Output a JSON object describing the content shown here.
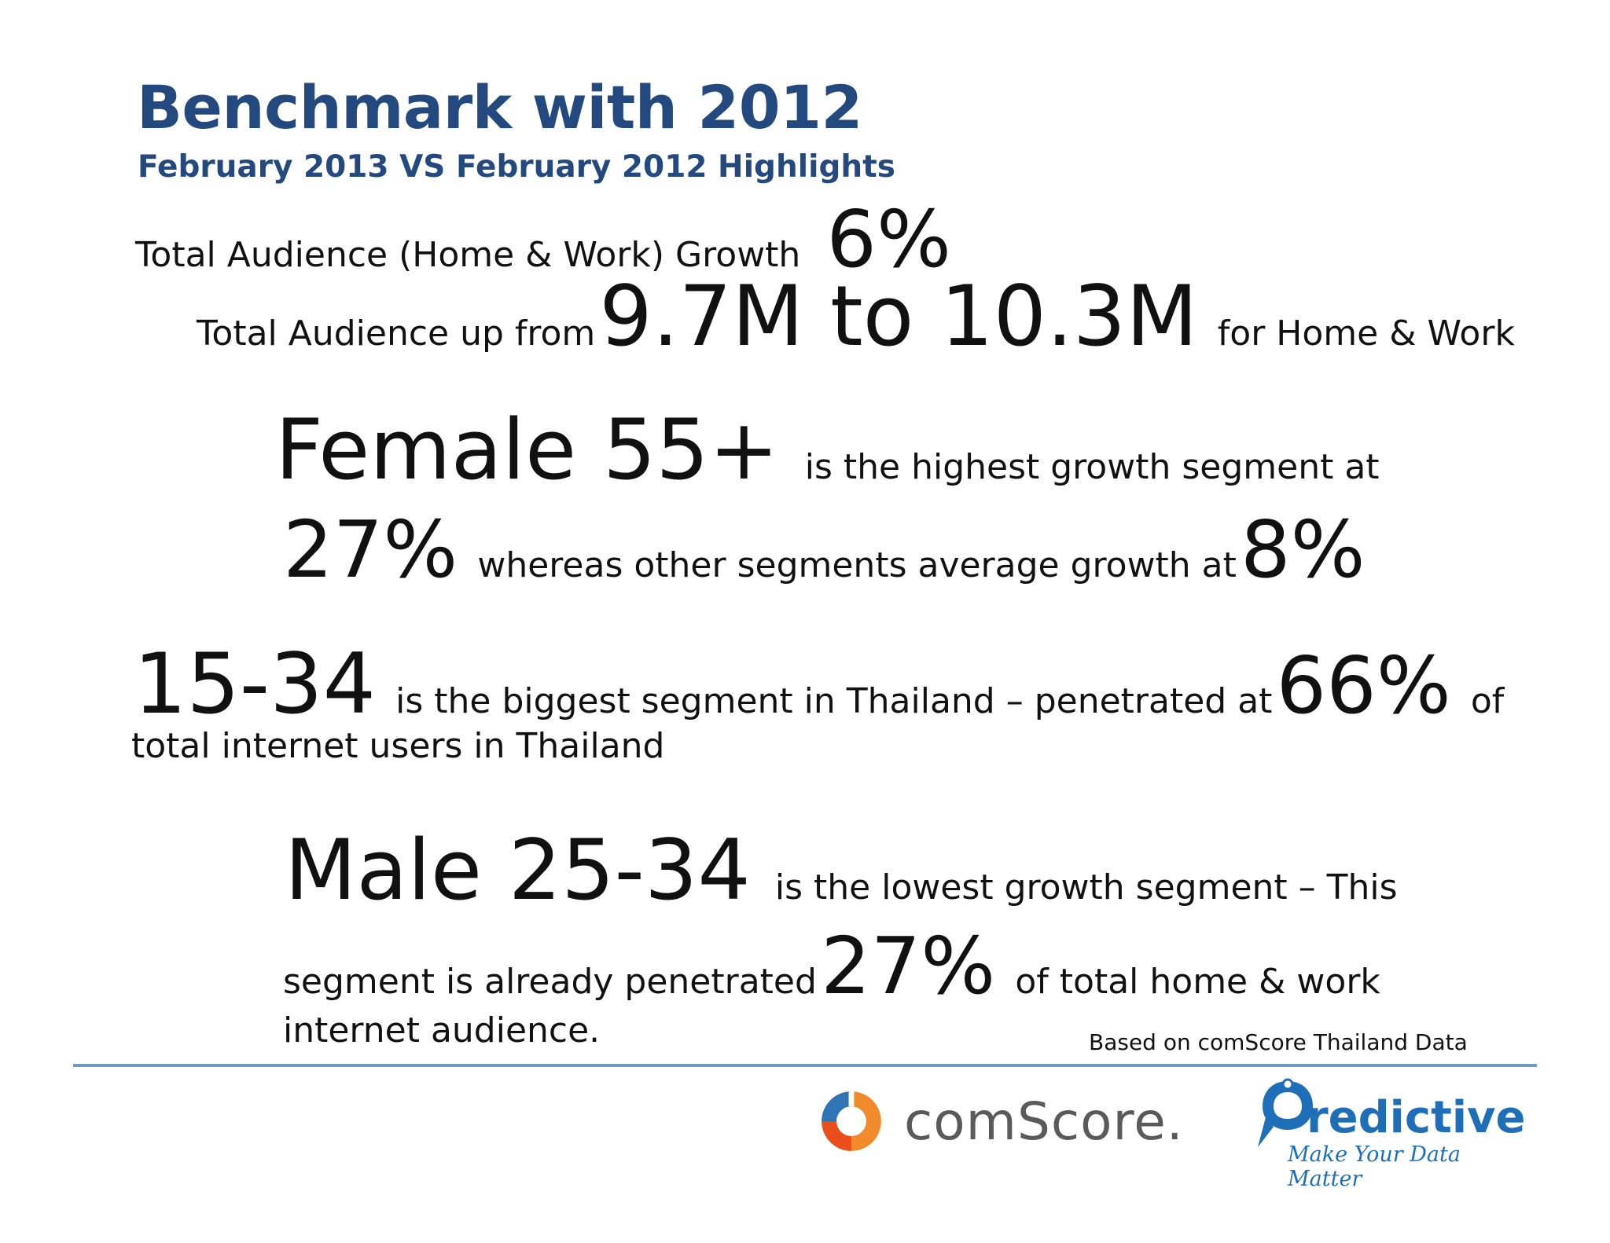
{
  "title": "Benchmark with 2012",
  "subtitle": "February 2013 VS February 2012 Highlights",
  "highlights": {
    "line1": {
      "text": "Total Audience (Home & Work) Growth",
      "value": "6%"
    },
    "line2": {
      "prefix": "Total Audience up from",
      "value": "9.7M to 10.3M",
      "suffix": "for Home & Work"
    },
    "line3": {
      "value": "Female 55+",
      "text": "is the highest growth segment at"
    },
    "line4": {
      "value": "27%",
      "text": "whereas other segments average growth at",
      "value2": "8%"
    },
    "line5": {
      "value": "15-34",
      "text": "is the biggest segment in Thailand – penetrated at",
      "value2": "66%",
      "suffix": "of",
      "continuation": "total internet users in Thailand"
    },
    "line6": {
      "value": "Male 25-34",
      "text": "is the lowest growth segment – This"
    },
    "line7": {
      "prefix": "segment is already penetrated",
      "value": "27%",
      "suffix": "of total home & work",
      "continuation": "internet audience."
    }
  },
  "source_note": "Based on comScore Thailand Data",
  "logos": {
    "comscore": {
      "name": "comScore.",
      "icon": "comscore-logo-icon"
    },
    "predictive": {
      "name": "redictive",
      "tagline": "Make Your Data Matter",
      "icon": "predictive-logo-icon"
    }
  },
  "colors": {
    "title": "#24497e",
    "rule": "#6e9cc6",
    "predictive": "#1e6fb8"
  }
}
